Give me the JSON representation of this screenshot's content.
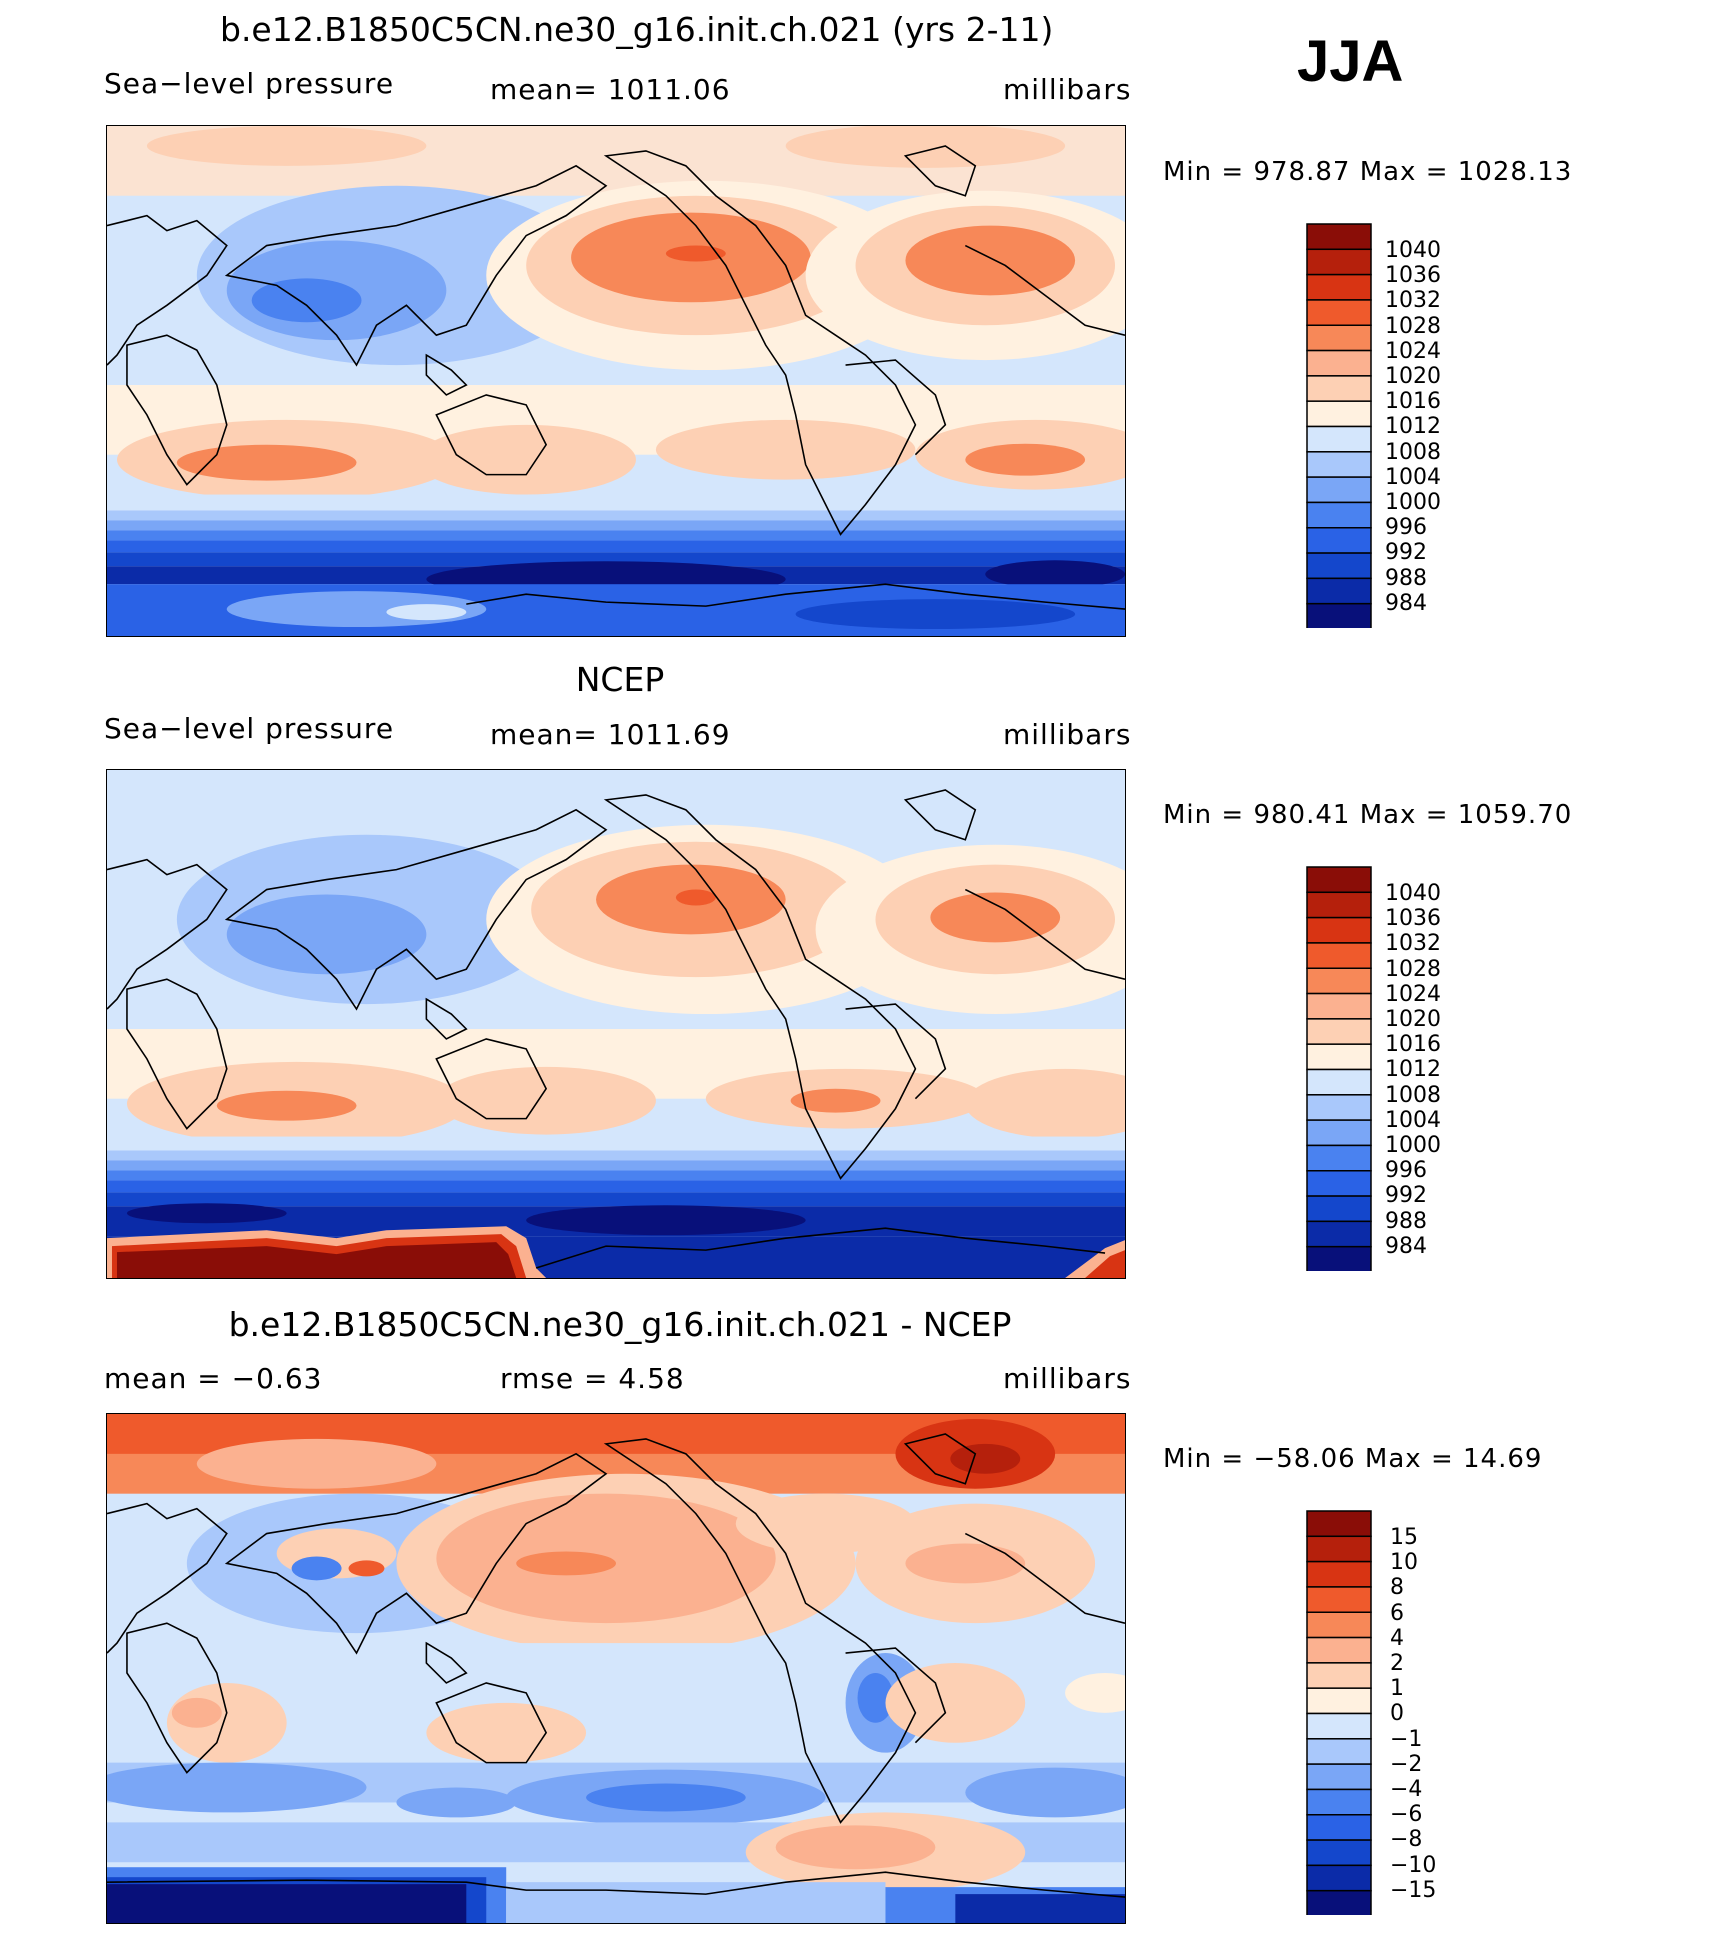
{
  "season": "JJA",
  "palette_abs": [
    "#08107a",
    "#0b2ba8",
    "#1447cc",
    "#2a62e6",
    "#4a82f0",
    "#7aa6f6",
    "#a9c8fb",
    "#d4e6fc",
    "#fff1e0",
    "#fdd0b4",
    "#fbb190",
    "#f78858",
    "#ef5a2c",
    "#d83413",
    "#b5200c",
    "#8a0d07"
  ],
  "palette_diff": [
    "#08107a",
    "#0b2ba8",
    "#1447cc",
    "#2a62e6",
    "#4a82f0",
    "#7aa6f6",
    "#a9c8fb",
    "#d4e6fc",
    "#fff1e0",
    "#fdd0b4",
    "#fbb190",
    "#f78858",
    "#ef5a2c",
    "#d83413",
    "#b5200c",
    "#8a0d07"
  ],
  "panels": [
    {
      "title": "b.e12.B1850C5CN.ne30_g16.init.ch.021 (yrs 2-11)",
      "left": "Sea−level pressure",
      "middle": "mean=  1011.06",
      "right": "millibars",
      "minmax": "Min  =  978.87  Max  =  1028.13",
      "colorbar_labels": [
        "1040",
        "1036",
        "1032",
        "1028",
        "1024",
        "1020",
        "1016",
        "1012",
        "1008",
        "1004",
        "1000",
        "996",
        "992",
        "988",
        "984"
      ]
    },
    {
      "title": "NCEP",
      "left": "Sea−level pressure",
      "middle": "mean=  1011.69",
      "right": "millibars",
      "minmax": "Min  =  980.41  Max  =  1059.70",
      "colorbar_labels": [
        "1040",
        "1036",
        "1032",
        "1028",
        "1024",
        "1020",
        "1016",
        "1012",
        "1008",
        "1004",
        "1000",
        "996",
        "992",
        "988",
        "984"
      ]
    },
    {
      "title": "b.e12.B1850C5CN.ne30_g16.init.ch.021 - NCEP",
      "left": "mean  =    −0.63",
      "middle": "rmse  =     4.58",
      "right": "millibars",
      "minmax": "Min  =  −58.06  Max  =    14.69",
      "colorbar_labels": [
        "15",
        "10",
        "8",
        "6",
        "4",
        "2",
        "1",
        "0",
        "−1",
        "−2",
        "−4",
        "−6",
        "−8",
        "−10",
        "−15"
      ]
    }
  ]
}
